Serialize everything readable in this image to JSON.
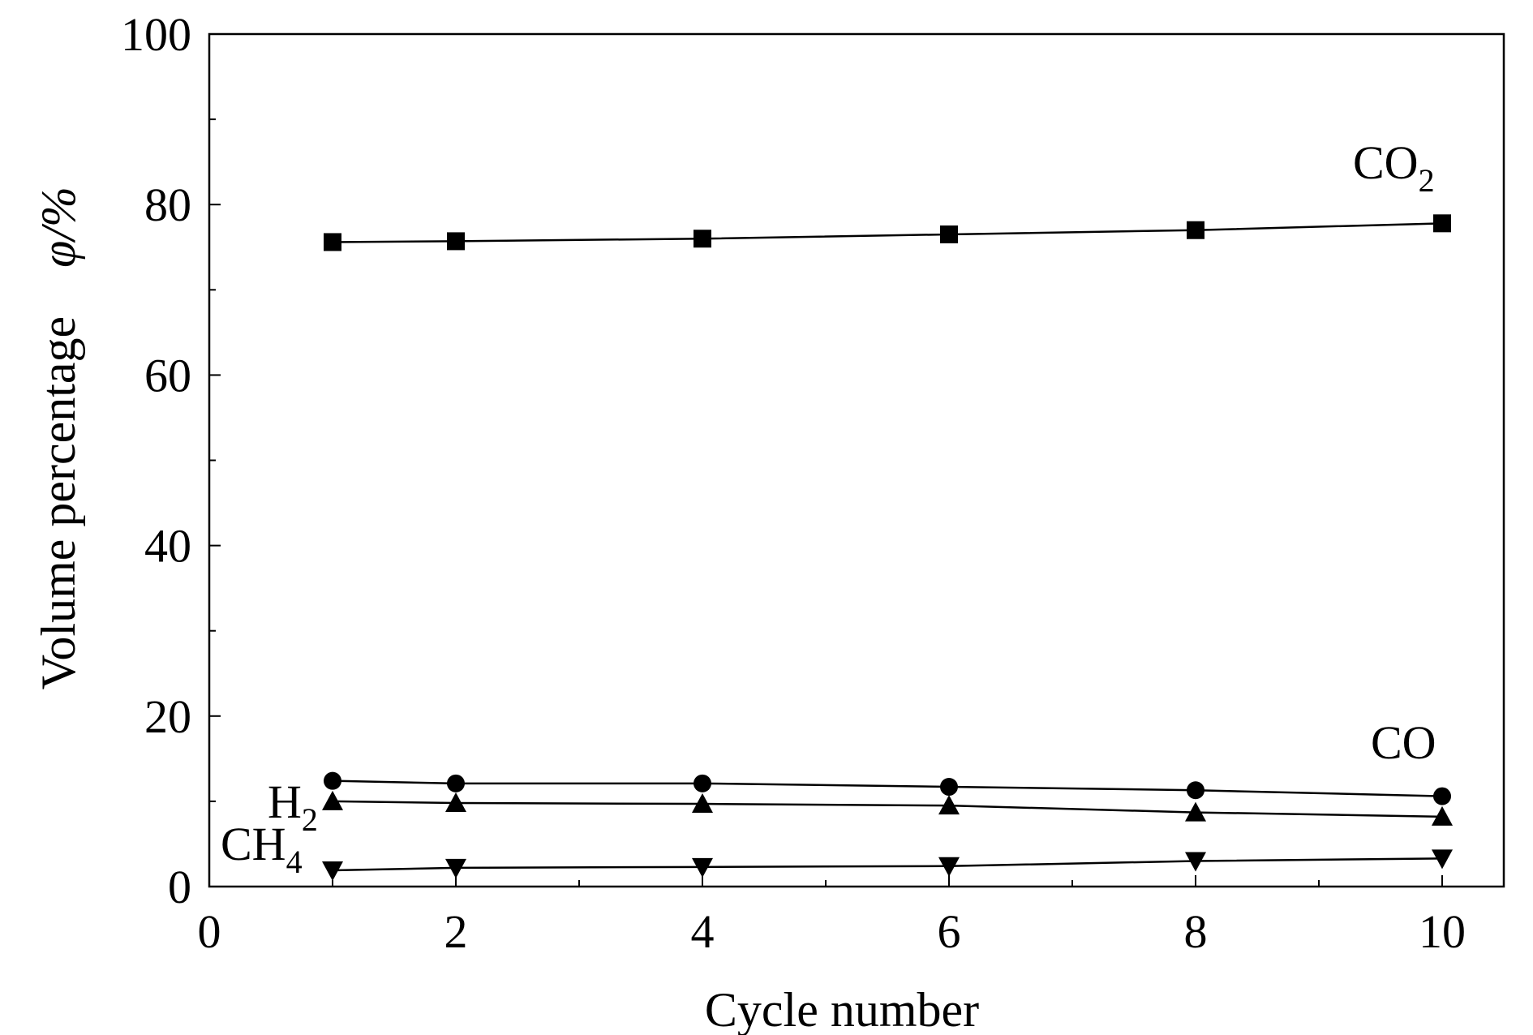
{
  "chart_data": {
    "type": "line",
    "xlabel": "Cycle number",
    "ylabel": "Volume percentage",
    "ylabel_symbol": "φ/%",
    "xlim": [
      0,
      10.5
    ],
    "ylim": [
      0,
      100
    ],
    "xticks": [
      0,
      2,
      4,
      6,
      8,
      10
    ],
    "yticks": [
      0,
      20,
      40,
      60,
      80,
      100
    ],
    "x": [
      1,
      2,
      4,
      6,
      8,
      10
    ],
    "grid": false,
    "legend": "none (series labelled inline on plot)",
    "series": [
      {
        "name": "CO2",
        "label_main": "CO",
        "label_sub": "2",
        "marker": "square",
        "values": [
          75.6,
          75.7,
          76.0,
          76.5,
          77.0,
          77.8
        ]
      },
      {
        "name": "CO",
        "label_main": "CO",
        "label_sub": "",
        "marker": "circle",
        "values": [
          12.4,
          12.1,
          12.1,
          11.7,
          11.3,
          10.6
        ]
      },
      {
        "name": "H2",
        "label_main": "H",
        "label_sub": "2",
        "marker": "triangle-up",
        "values": [
          10.0,
          9.8,
          9.7,
          9.5,
          8.7,
          8.2
        ]
      },
      {
        "name": "CH4",
        "label_main": "CH",
        "label_sub": "4",
        "marker": "triangle-down",
        "values": [
          1.9,
          2.2,
          2.3,
          2.4,
          3.0,
          3.3
        ]
      }
    ]
  }
}
